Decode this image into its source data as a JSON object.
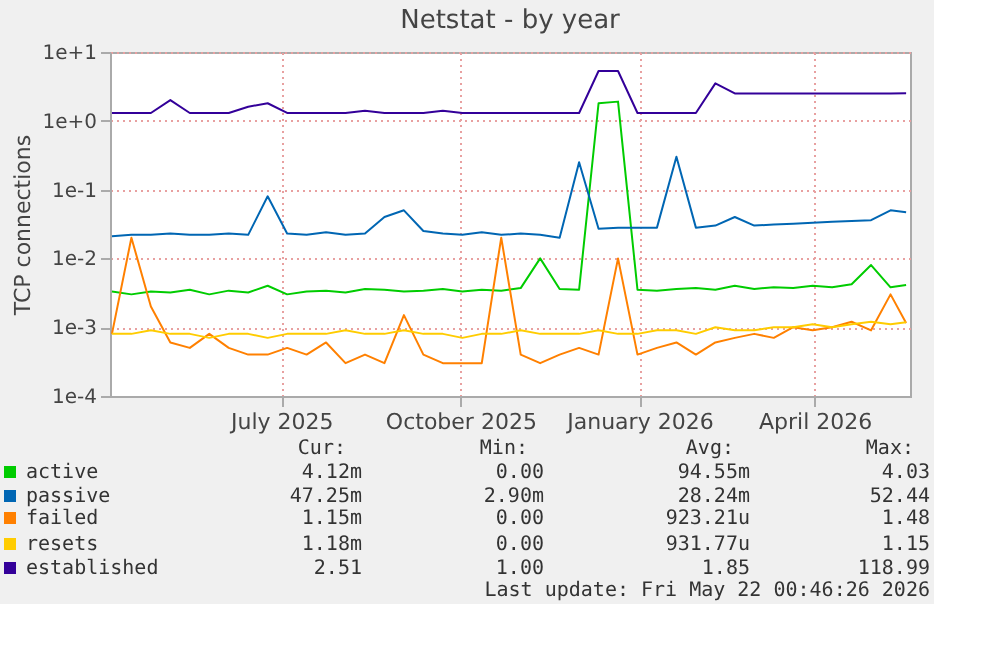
{
  "chart_data": {
    "type": "line",
    "title": "Netstat - by year",
    "ylabel": "TCP connections",
    "log": true,
    "grid": true,
    "legend": "bottom",
    "line_style": "solid",
    "x": [
      "2025-04-05",
      "2025-04-15",
      "2025-04-25",
      "2025-05-05",
      "2025-05-15",
      "2025-05-25",
      "2025-06-04",
      "2025-06-14",
      "2025-06-24",
      "2025-07-04",
      "2025-07-14",
      "2025-07-24",
      "2025-08-03",
      "2025-08-13",
      "2025-08-23",
      "2025-09-02",
      "2025-09-12",
      "2025-09-22",
      "2025-10-02",
      "2025-10-12",
      "2025-10-22",
      "2025-11-01",
      "2025-11-11",
      "2025-11-21",
      "2025-12-01",
      "2025-12-11",
      "2025-12-21",
      "2025-12-31",
      "2026-01-10",
      "2026-01-20",
      "2026-01-30",
      "2026-02-09",
      "2026-02-19",
      "2026-03-01",
      "2026-03-11",
      "2026-03-21",
      "2026-03-31",
      "2026-04-10",
      "2026-04-20",
      "2026-04-30",
      "2026-05-10",
      "2026-05-18"
    ],
    "xlim": [
      "2025-04-04",
      "2026-05-20"
    ],
    "xticks": [
      {
        "value": "2025-07-01",
        "label": "July 2025"
      },
      {
        "value": "2025-10-01",
        "label": "October 2025"
      },
      {
        "value": "2026-01-01",
        "label": "January 2026"
      },
      {
        "value": "2026-04-01",
        "label": "April 2026"
      }
    ],
    "ylim": [
      0.0001,
      10
    ],
    "yticks": [
      {
        "value": 0.0001,
        "label": "1e-4"
      },
      {
        "value": 0.001,
        "label": "1e-3"
      },
      {
        "value": 0.01,
        "label": "1e-2"
      },
      {
        "value": 0.1,
        "label": "1e-1"
      },
      {
        "value": 1,
        "label": "1e+0"
      },
      {
        "value": 10,
        "label": "1e+1"
      }
    ],
    "series": [
      {
        "name": "active",
        "color": "#00cc00",
        "values": [
          0.0033,
          0.003,
          0.0033,
          0.0032,
          0.0035,
          0.003,
          0.0034,
          0.0032,
          0.004,
          0.003,
          0.0033,
          0.0034,
          0.0032,
          0.0036,
          0.0035,
          0.0033,
          0.0034,
          0.0036,
          0.0033,
          0.0035,
          0.0034,
          0.0037,
          0.01,
          0.0036,
          0.0035,
          1.8,
          1.9,
          0.0035,
          0.0034,
          0.0036,
          0.0037,
          0.0035,
          0.004,
          0.0036,
          0.0038,
          0.0037,
          0.004,
          0.0038,
          0.0042,
          0.008,
          0.0038,
          0.0041
        ]
      },
      {
        "name": "passive",
        "color": "#0066b3",
        "values": [
          0.021,
          0.022,
          0.022,
          0.023,
          0.022,
          0.022,
          0.023,
          0.022,
          0.08,
          0.023,
          0.022,
          0.024,
          0.022,
          0.023,
          0.04,
          0.05,
          0.025,
          0.023,
          0.022,
          0.024,
          0.022,
          0.023,
          0.022,
          0.02,
          0.25,
          0.027,
          0.028,
          0.028,
          0.028,
          0.3,
          0.028,
          0.03,
          0.04,
          0.03,
          0.031,
          0.032,
          0.033,
          0.034,
          0.035,
          0.036,
          0.05,
          0.047
        ]
      },
      {
        "name": "failed",
        "color": "#ff8000",
        "values": [
          0.0008,
          0.02,
          0.002,
          0.0006,
          0.0005,
          0.0008,
          0.0005,
          0.0004,
          0.0004,
          0.0005,
          0.0004,
          0.0006,
          0.0003,
          0.0004,
          0.0003,
          0.0015,
          0.0004,
          0.0003,
          0.0003,
          0.0003,
          0.02,
          0.0004,
          0.0003,
          0.0004,
          0.0005,
          0.0004,
          0.01,
          0.0004,
          0.0005,
          0.0006,
          0.0004,
          0.0006,
          0.0007,
          0.0008,
          0.0007,
          0.001,
          0.0009,
          0.001,
          0.0012,
          0.0009,
          0.003,
          0.00115
        ]
      },
      {
        "name": "resets",
        "color": "#ffcc00",
        "values": [
          0.0008,
          0.0008,
          0.0009,
          0.0008,
          0.0008,
          0.0007,
          0.0008,
          0.0008,
          0.0007,
          0.0008,
          0.0008,
          0.0008,
          0.0009,
          0.0008,
          0.0008,
          0.0009,
          0.0008,
          0.0008,
          0.0007,
          0.0008,
          0.0008,
          0.0009,
          0.0008,
          0.0008,
          0.0008,
          0.0009,
          0.0008,
          0.0008,
          0.0009,
          0.0009,
          0.0008,
          0.001,
          0.0009,
          0.0009,
          0.001,
          0.001,
          0.0011,
          0.001,
          0.0011,
          0.0012,
          0.0011,
          0.00118
        ]
      },
      {
        "name": "established",
        "color": "#330099",
        "values": [
          1.3,
          1.3,
          1.3,
          2.0,
          1.3,
          1.3,
          1.3,
          1.6,
          1.8,
          1.3,
          1.3,
          1.3,
          1.3,
          1.4,
          1.3,
          1.3,
          1.3,
          1.4,
          1.3,
          1.3,
          1.3,
          1.3,
          1.3,
          1.3,
          1.3,
          5.3,
          5.3,
          1.3,
          1.3,
          1.3,
          1.3,
          3.5,
          2.5,
          2.5,
          2.5,
          2.5,
          2.5,
          2.5,
          2.5,
          2.5,
          2.5,
          2.51
        ]
      }
    ],
    "annotations": [
      "Cur:",
      "Min:",
      "Avg:",
      "Max:",
      "4.12m",
      "0.00",
      "94.55m",
      "4.03",
      "47.25m",
      "2.90m",
      "28.24m",
      "52.44",
      "1.15m",
      "0.00",
      "923.21u",
      "1.48",
      "1.18m",
      "0.00",
      "931.77u",
      "1.15",
      "2.51",
      "1.00",
      "1.85",
      "118.99",
      "Last update: Fri May 22 00:46:26 2026"
    ]
  }
}
